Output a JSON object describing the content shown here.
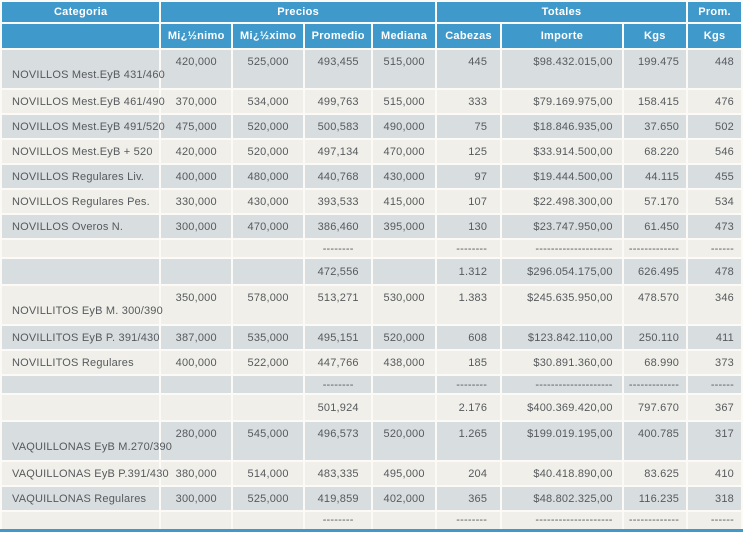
{
  "colors": {
    "header_bg": "#4099cb",
    "header_text": "#ffffff",
    "row_bluegray": "#d8dde0",
    "row_beige": "#f0efe9",
    "text": "#565a5e",
    "grid_line": "#fbfaf7",
    "bottom_border": "#4099cb"
  },
  "header": {
    "group_row": [
      {
        "label": "Categoria"
      },
      {
        "label": "Precios"
      },
      {
        "label": "Totales"
      },
      {
        "label": "Prom."
      }
    ],
    "columns": [
      "",
      "Mi¿½nimo",
      "Mi¿½ximo",
      "Promedio",
      "Mediana",
      "Cabezas",
      "Importe",
      "Kgs",
      "Kgs"
    ]
  },
  "rows": [
    {
      "type": "data",
      "tall": true,
      "categoria": "NOVILLOS Mest.EyB 431/460",
      "minimo": "420,000",
      "maximo": "525,000",
      "promedio": "493,455",
      "mediana": "515,000",
      "cabezas": "445",
      "importe": "$98.432.015,00",
      "kgs": "199.475",
      "prom_kgs": "448"
    },
    {
      "type": "data",
      "tall": false,
      "categoria": "NOVILLOS Mest.EyB 461/490",
      "minimo": "370,000",
      "maximo": "534,000",
      "promedio": "499,763",
      "mediana": "515,000",
      "cabezas": "333",
      "importe": "$79.169.975,00",
      "kgs": "158.415",
      "prom_kgs": "476"
    },
    {
      "type": "data",
      "tall": false,
      "categoria": "NOVILLOS Mest.EyB 491/520",
      "minimo": "475,000",
      "maximo": "520,000",
      "promedio": "500,583",
      "mediana": "490,000",
      "cabezas": "75",
      "importe": "$18.846.935,00",
      "kgs": "37.650",
      "prom_kgs": "502"
    },
    {
      "type": "data",
      "tall": false,
      "categoria": "NOVILLOS Mest.EyB + 520",
      "minimo": "420,000",
      "maximo": "520,000",
      "promedio": "497,134",
      "mediana": "470,000",
      "cabezas": "125",
      "importe": "$33.914.500,00",
      "kgs": "68.220",
      "prom_kgs": "546"
    },
    {
      "type": "data",
      "tall": false,
      "categoria": "NOVILLOS Regulares Liv.",
      "minimo": "400,000",
      "maximo": "480,000",
      "promedio": "440,768",
      "mediana": "430,000",
      "cabezas": "97",
      "importe": "$19.444.500,00",
      "kgs": "44.115",
      "prom_kgs": "455"
    },
    {
      "type": "data",
      "tall": false,
      "categoria": "NOVILLOS Regulares Pes.",
      "minimo": "330,000",
      "maximo": "430,000",
      "promedio": "393,533",
      "mediana": "415,000",
      "cabezas": "107",
      "importe": "$22.498.300,00",
      "kgs": "57.170",
      "prom_kgs": "534"
    },
    {
      "type": "data",
      "tall": false,
      "categoria": "NOVILLOS Overos N.",
      "minimo": "300,000",
      "maximo": "470,000",
      "promedio": "386,460",
      "mediana": "395,000",
      "cabezas": "130",
      "importe": "$23.747.950,00",
      "kgs": "61.450",
      "prom_kgs": "473"
    },
    {
      "type": "separator",
      "tall": false,
      "categoria": "",
      "minimo": "",
      "maximo": "",
      "promedio": "--------",
      "mediana": "",
      "cabezas": "--------",
      "importe": "--------------------",
      "kgs": "-------------",
      "prom_kgs": "------"
    },
    {
      "type": "subtotal",
      "tall": false,
      "categoria": "",
      "minimo": "",
      "maximo": "",
      "promedio": "472,556",
      "mediana": "",
      "cabezas": "1.312",
      "importe": "$296.054.175,00",
      "kgs": "626.495",
      "prom_kgs": "478"
    },
    {
      "type": "data",
      "tall": true,
      "categoria": "NOVILLITOS EyB M. 300/390",
      "minimo": "350,000",
      "maximo": "578,000",
      "promedio": "513,271",
      "mediana": "530,000",
      "cabezas": "1.383",
      "importe": "$245.635.950,00",
      "kgs": "478.570",
      "prom_kgs": "346"
    },
    {
      "type": "data",
      "tall": false,
      "categoria": "NOVILLITOS EyB P. 391/430",
      "minimo": "387,000",
      "maximo": "535,000",
      "promedio": "495,151",
      "mediana": "520,000",
      "cabezas": "608",
      "importe": "$123.842.110,00",
      "kgs": "250.110",
      "prom_kgs": "411"
    },
    {
      "type": "data",
      "tall": false,
      "categoria": "NOVILLITOS Regulares",
      "minimo": "400,000",
      "maximo": "522,000",
      "promedio": "447,766",
      "mediana": "438,000",
      "cabezas": "185",
      "importe": "$30.891.360,00",
      "kgs": "68.990",
      "prom_kgs": "373"
    },
    {
      "type": "separator",
      "tall": false,
      "categoria": "",
      "minimo": "",
      "maximo": "",
      "promedio": "--------",
      "mediana": "",
      "cabezas": "--------",
      "importe": "--------------------",
      "kgs": "-------------",
      "prom_kgs": "------"
    },
    {
      "type": "subtotal",
      "tall": false,
      "categoria": "",
      "minimo": "",
      "maximo": "",
      "promedio": "501,924",
      "mediana": "",
      "cabezas": "2.176",
      "importe": "$400.369.420,00",
      "kgs": "797.670",
      "prom_kgs": "367"
    },
    {
      "type": "data",
      "tall": true,
      "categoria": "VAQUILLONAS EyB M.270/390",
      "minimo": "280,000",
      "maximo": "545,000",
      "promedio": "496,573",
      "mediana": "520,000",
      "cabezas": "1.265",
      "importe": "$199.019.195,00",
      "kgs": "400.785",
      "prom_kgs": "317"
    },
    {
      "type": "data",
      "tall": false,
      "categoria": "VAQUILLONAS EyB P.391/430",
      "minimo": "380,000",
      "maximo": "514,000",
      "promedio": "483,335",
      "mediana": "495,000",
      "cabezas": "204",
      "importe": "$40.418.890,00",
      "kgs": "83.625",
      "prom_kgs": "410"
    },
    {
      "type": "data",
      "tall": false,
      "categoria": "VAQUILLONAS Regulares",
      "minimo": "300,000",
      "maximo": "525,000",
      "promedio": "419,859",
      "mediana": "402,000",
      "cabezas": "365",
      "importe": "$48.802.325,00",
      "kgs": "116.235",
      "prom_kgs": "318"
    },
    {
      "type": "separator",
      "tall": false,
      "categoria": "",
      "minimo": "",
      "maximo": "",
      "promedio": "--------",
      "mediana": "",
      "cabezas": "--------",
      "importe": "--------------------",
      "kgs": "-------------",
      "prom_kgs": "------"
    }
  ]
}
